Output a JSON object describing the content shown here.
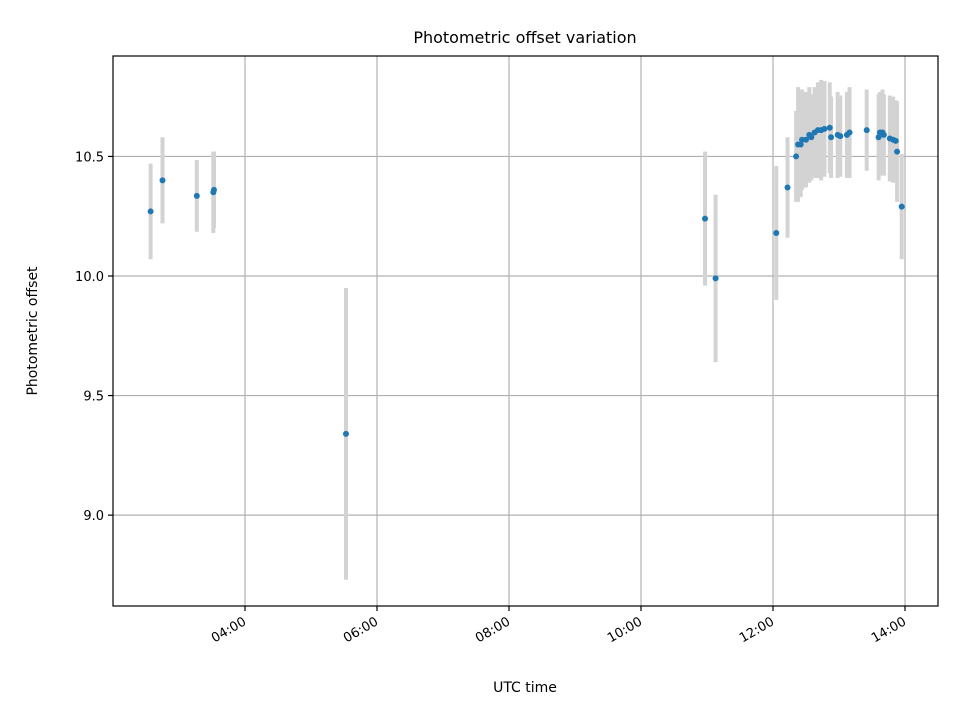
{
  "chart_data": {
    "type": "scatter",
    "title": "Photometric offset variation",
    "xlabel": "UTC time",
    "ylabel": "Photometric offset",
    "x_unit": "hours UTC",
    "xlim": [
      2.0,
      14.5
    ],
    "ylim": [
      8.62,
      10.92
    ],
    "xticks": [
      {
        "value": 4,
        "label": "04:00"
      },
      {
        "value": 6,
        "label": "06:00"
      },
      {
        "value": 8,
        "label": "08:00"
      },
      {
        "value": 10,
        "label": "10:00"
      },
      {
        "value": 12,
        "label": "12:00"
      },
      {
        "value": 14,
        "label": "14:00"
      }
    ],
    "yticks": [
      {
        "value": 9.0,
        "label": "9.0"
      },
      {
        "value": 9.5,
        "label": "9.5"
      },
      {
        "value": 10.0,
        "label": "10.0"
      },
      {
        "value": 10.5,
        "label": "10.5"
      }
    ],
    "grid": true,
    "colors": {
      "marker": "#1f77b4",
      "errorbar": "#d3d3d3",
      "grid": "#b0b0b0"
    },
    "points": [
      {
        "x": 2.57,
        "y": 10.27,
        "err": 0.2
      },
      {
        "x": 2.75,
        "y": 10.4,
        "err": 0.18
      },
      {
        "x": 3.27,
        "y": 10.335,
        "err": 0.15
      },
      {
        "x": 3.52,
        "y": 10.35,
        "err": 0.17
      },
      {
        "x": 3.53,
        "y": 10.36,
        "err": 0.16
      },
      {
        "x": 5.53,
        "y": 9.34,
        "err": 0.61
      },
      {
        "x": 10.97,
        "y": 10.24,
        "err": 0.28
      },
      {
        "x": 11.13,
        "y": 9.99,
        "err": 0.35
      },
      {
        "x": 12.05,
        "y": 10.18,
        "err": 0.28
      },
      {
        "x": 12.22,
        "y": 10.37,
        "err": 0.21
      },
      {
        "x": 12.35,
        "y": 10.5,
        "err": 0.19
      },
      {
        "x": 12.38,
        "y": 10.55,
        "err": 0.24
      },
      {
        "x": 12.42,
        "y": 10.55,
        "err": 0.22
      },
      {
        "x": 12.44,
        "y": 10.57,
        "err": 0.21
      },
      {
        "x": 12.5,
        "y": 10.57,
        "err": 0.2
      },
      {
        "x": 12.55,
        "y": 10.59,
        "err": 0.2
      },
      {
        "x": 12.58,
        "y": 10.58,
        "err": 0.18
      },
      {
        "x": 12.63,
        "y": 10.6,
        "err": 0.19
      },
      {
        "x": 12.68,
        "y": 10.61,
        "err": 0.2
      },
      {
        "x": 12.73,
        "y": 10.61,
        "err": 0.21
      },
      {
        "x": 12.78,
        "y": 10.615,
        "err": 0.2
      },
      {
        "x": 12.86,
        "y": 10.62,
        "err": 0.19
      },
      {
        "x": 12.88,
        "y": 10.58,
        "err": 0.17
      },
      {
        "x": 12.98,
        "y": 10.59,
        "err": 0.18
      },
      {
        "x": 13.02,
        "y": 10.585,
        "err": 0.17
      },
      {
        "x": 13.12,
        "y": 10.59,
        "err": 0.18
      },
      {
        "x": 13.16,
        "y": 10.6,
        "err": 0.19
      },
      {
        "x": 13.42,
        "y": 10.61,
        "err": 0.17
      },
      {
        "x": 13.6,
        "y": 10.58,
        "err": 0.18
      },
      {
        "x": 13.62,
        "y": 10.6,
        "err": 0.17
      },
      {
        "x": 13.66,
        "y": 10.6,
        "err": 0.18
      },
      {
        "x": 13.68,
        "y": 10.59,
        "err": 0.17
      },
      {
        "x": 13.77,
        "y": 10.575,
        "err": 0.18
      },
      {
        "x": 13.82,
        "y": 10.57,
        "err": 0.18
      },
      {
        "x": 13.86,
        "y": 10.565,
        "err": 0.17
      },
      {
        "x": 13.88,
        "y": 10.52,
        "err": 0.21
      },
      {
        "x": 13.95,
        "y": 10.29,
        "err": 0.22
      }
    ]
  }
}
